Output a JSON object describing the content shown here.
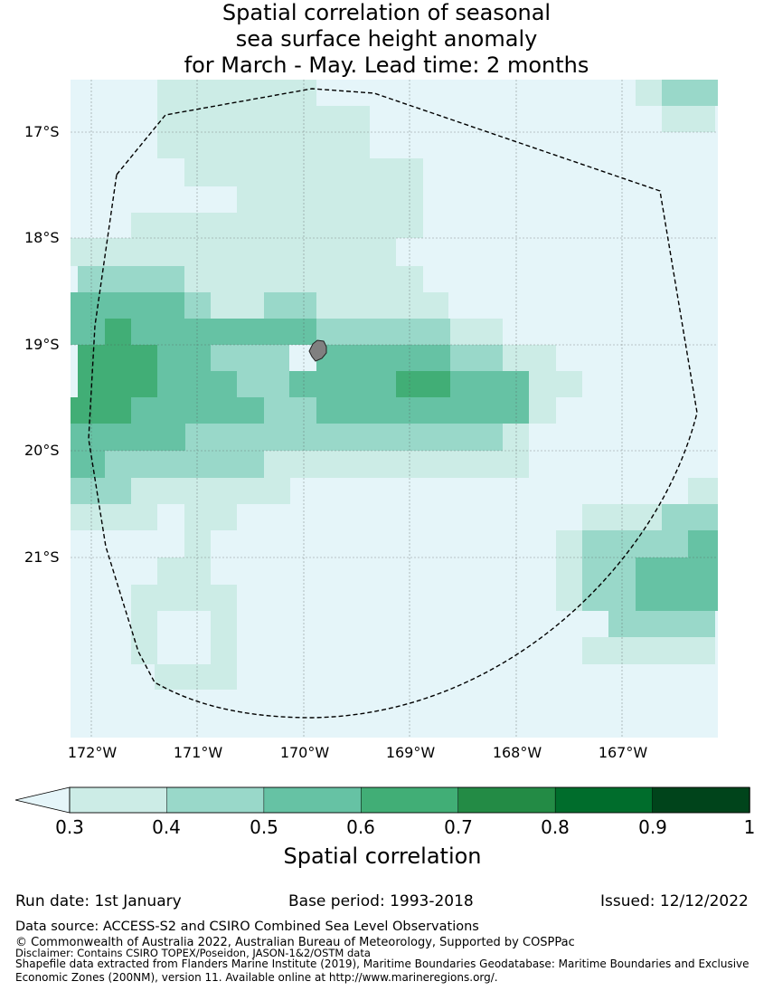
{
  "title": {
    "line1": "Spatial correlation of seasonal",
    "line2": "sea surface height anomaly",
    "line3": "for March - May. Lead time: 2 months"
  },
  "map": {
    "lat_labels": [
      "17°S",
      "18°S",
      "19°S",
      "20°S",
      "21°S"
    ],
    "lon_labels": [
      "172°W",
      "171°W",
      "170°W",
      "169°W",
      "168°W",
      "167°W"
    ],
    "background_color": "#e5f5f9",
    "land_color": "#808080",
    "boundary_style": "dashed black line (maritime boundary / EEZ)"
  },
  "colorbar": {
    "label": "Spatial correlation",
    "ticks": [
      "0.3",
      "0.4",
      "0.5",
      "0.6",
      "0.7",
      "0.8",
      "0.9",
      "1"
    ],
    "colors": [
      "#ccece6",
      "#99d8c9",
      "#66c2a4",
      "#41ae76",
      "#238b45",
      "#006d2c",
      "#00441b"
    ],
    "under_color": "#e5f5f9"
  },
  "footer": {
    "run_date": "Run date: 1st January",
    "base_period": "Base period: 1993-2018",
    "issued": "Issued: 12/12/2022",
    "data_source": "Data source: ACCESS-S2 and CSIRO Combined Sea Level Observations",
    "copyright": "© Commonwealth of Australia 2022, Australian Bureau of Meteorology, Supported by COSPPac",
    "disclaimer": "Disclaimer: Contains CSIRO TOPEX/Poseidon, JASON-1&2/OSTM data",
    "shapefile_line1": "Shapefile data extracted from Flanders Marine Institute (2019), Maritime Boundaries Geodatabase: Maritime Boundaries and Exclusive",
    "shapefile_line2": "Economic Zones (200NM), version 11. Available online at http://www.marineregions.org/."
  }
}
